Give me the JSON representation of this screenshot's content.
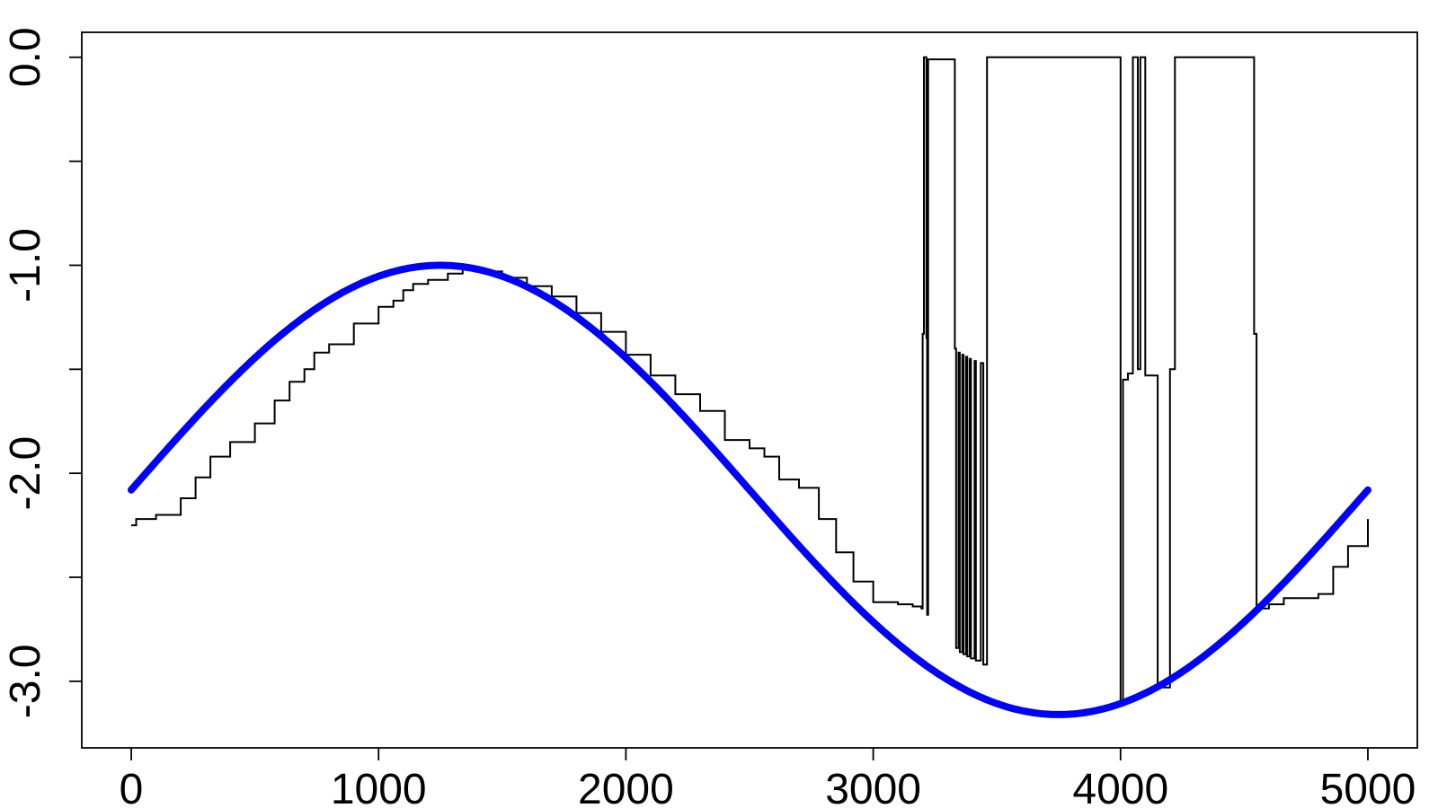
{
  "chart_data": {
    "type": "line",
    "title": "",
    "xlabel": "",
    "ylabel": "",
    "xlim": [
      -200,
      5200
    ],
    "ylim": [
      -3.32,
      0.12
    ],
    "x_ticks": [
      0,
      1000,
      2000,
      3000,
      4000,
      5000
    ],
    "x_tick_labels": [
      "0",
      "1000",
      "2000",
      "3000",
      "4000",
      "5000"
    ],
    "y_ticks": [
      0.0,
      -0.5,
      -1.0,
      -1.5,
      -2.0,
      -2.5,
      -3.0
    ],
    "y_tick_labels": [
      "0.0",
      "",
      "-1.0",
      "",
      "-2.0",
      "",
      "-3.0"
    ],
    "grid": false,
    "legend": "none",
    "series": [
      {
        "style": "step",
        "color": "#000000",
        "points": [
          [
            0,
            -2.25
          ],
          [
            20,
            -2.22
          ],
          [
            100,
            -2.2
          ],
          [
            200,
            -2.12
          ],
          [
            260,
            -2.02
          ],
          [
            320,
            -1.92
          ],
          [
            400,
            -1.85
          ],
          [
            500,
            -1.76
          ],
          [
            580,
            -1.65
          ],
          [
            640,
            -1.56
          ],
          [
            700,
            -1.5
          ],
          [
            740,
            -1.42
          ],
          [
            800,
            -1.38
          ],
          [
            900,
            -1.28
          ],
          [
            1000,
            -1.2
          ],
          [
            1060,
            -1.17
          ],
          [
            1100,
            -1.12
          ],
          [
            1140,
            -1.09
          ],
          [
            1200,
            -1.07
          ],
          [
            1280,
            -1.04
          ],
          [
            1340,
            -1.02
          ],
          [
            1400,
            -1.03
          ],
          [
            1500,
            -1.06
          ],
          [
            1600,
            -1.1
          ],
          [
            1700,
            -1.15
          ],
          [
            1800,
            -1.23
          ],
          [
            1900,
            -1.32
          ],
          [
            2000,
            -1.43
          ],
          [
            2100,
            -1.53
          ],
          [
            2200,
            -1.62
          ],
          [
            2300,
            -1.7
          ],
          [
            2400,
            -1.84
          ],
          [
            2500,
            -1.88
          ],
          [
            2560,
            -1.92
          ],
          [
            2620,
            -2.03
          ],
          [
            2700,
            -2.07
          ],
          [
            2780,
            -2.22
          ],
          [
            2850,
            -2.38
          ],
          [
            2920,
            -2.52
          ],
          [
            3000,
            -2.62
          ],
          [
            3100,
            -2.63
          ],
          [
            3160,
            -2.64
          ],
          [
            3195,
            -2.65
          ],
          [
            3200,
            -1.33
          ],
          [
            3205,
            0.0
          ],
          [
            3215,
            -1.35
          ],
          [
            3218,
            -2.68
          ],
          [
            3222,
            -0.01
          ],
          [
            3330,
            -1.4
          ],
          [
            3335,
            -2.84
          ],
          [
            3345,
            -1.42
          ],
          [
            3350,
            -2.86
          ],
          [
            3360,
            -1.43
          ],
          [
            3365,
            -2.87
          ],
          [
            3375,
            -1.44
          ],
          [
            3380,
            -2.88
          ],
          [
            3390,
            -1.45
          ],
          [
            3395,
            -2.89
          ],
          [
            3410,
            -1.46
          ],
          [
            3415,
            -2.9
          ],
          [
            3435,
            -1.47
          ],
          [
            3445,
            -2.92
          ],
          [
            3460,
            0.0
          ],
          [
            4000,
            -3.1
          ],
          [
            4010,
            -1.55
          ],
          [
            4030,
            -1.52
          ],
          [
            4050,
            0.0
          ],
          [
            4070,
            -1.5
          ],
          [
            4080,
            0.0
          ],
          [
            4100,
            -1.53
          ],
          [
            4150,
            -3.03
          ],
          [
            4200,
            -1.5
          ],
          [
            4220,
            0.0
          ],
          [
            4540,
            -1.33
          ],
          [
            4550,
            -2.65
          ],
          [
            4600,
            -2.63
          ],
          [
            4660,
            -2.6
          ],
          [
            4800,
            -2.58
          ],
          [
            4860,
            -2.45
          ],
          [
            4920,
            -2.35
          ],
          [
            5000,
            -2.22
          ]
        ]
      },
      {
        "style": "line",
        "color": "#0000ff",
        "formula": "-2.08 + 1.08*sin(2*pi*x/5000)",
        "x_range": [
          0,
          5000
        ]
      }
    ]
  }
}
